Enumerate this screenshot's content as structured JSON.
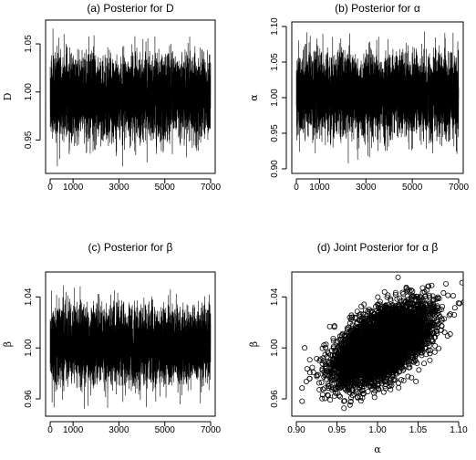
{
  "figure": {
    "background": "#ffffff",
    "ink": "#000000"
  },
  "chart_data": [
    {
      "id": "a",
      "type": "line",
      "title": "(a) Posterior for D",
      "xlabel": "",
      "ylabel": "D",
      "xlim": [
        0,
        7000
      ],
      "ylim": [
        0.92,
        1.07
      ],
      "xticks": [
        0,
        1000,
        3000,
        5000,
        7000
      ],
      "yticks": [
        0.95,
        1.0,
        1.05
      ],
      "ytick_labels": [
        "0.95",
        "1.00",
        "1.05"
      ],
      "series": [
        {
          "kind": "trace",
          "n": 7000,
          "mean": 0.995,
          "sd": 0.02,
          "min": 0.922,
          "max": 1.072
        }
      ],
      "grid": false
    },
    {
      "id": "b",
      "type": "line",
      "title": "(b) Posterior for α",
      "xlabel": "",
      "ylabel": "α",
      "xlim": [
        0,
        7000
      ],
      "ylim": [
        0.9,
        1.1
      ],
      "xticks": [
        0,
        1000,
        3000,
        5000,
        7000
      ],
      "yticks": [
        0.9,
        0.95,
        1.0,
        1.05,
        1.1
      ],
      "ytick_labels": [
        "0.90",
        "0.95",
        "1.00",
        "1.05",
        "1.10"
      ],
      "series": [
        {
          "kind": "trace",
          "n": 7000,
          "mean": 1.005,
          "sd": 0.027,
          "min": 0.907,
          "max": 1.093
        }
      ],
      "grid": false
    },
    {
      "id": "c",
      "type": "line",
      "title": "(c) Posterior for β",
      "xlabel": "",
      "ylabel": "β",
      "xlim": [
        0,
        7000
      ],
      "ylim": [
        0.95,
        1.056
      ],
      "xticks": [
        0,
        1000,
        3000,
        5000,
        7000
      ],
      "yticks": [
        0.96,
        1.0,
        1.04
      ],
      "ytick_labels": [
        "0.96",
        "1.00",
        "1.04"
      ],
      "series": [
        {
          "kind": "trace",
          "n": 7000,
          "mean": 1.002,
          "sd": 0.014,
          "min": 0.952,
          "max": 1.056
        }
      ],
      "grid": false
    },
    {
      "id": "d",
      "type": "scatter",
      "title": "(d) Joint Posterior for α β",
      "xlabel": "α",
      "ylabel": "β",
      "xlim": [
        0.9,
        1.1
      ],
      "ylim": [
        0.95,
        1.056
      ],
      "xticks": [
        0.9,
        0.95,
        1.0,
        1.05,
        1.1
      ],
      "xtick_labels": [
        "0.90",
        "0.95",
        "1.00",
        "1.05",
        "1.10"
      ],
      "yticks": [
        0.96,
        1.0,
        1.04
      ],
      "ytick_labels": [
        "0.96",
        "1.00",
        "1.04"
      ],
      "series": [
        {
          "kind": "points",
          "n": 7000,
          "x_mean": 1.005,
          "x_sd": 0.027,
          "y_mean": 1.002,
          "y_sd": 0.014,
          "correlation": 0.55,
          "marker": "open-circle"
        }
      ],
      "grid": false
    }
  ]
}
